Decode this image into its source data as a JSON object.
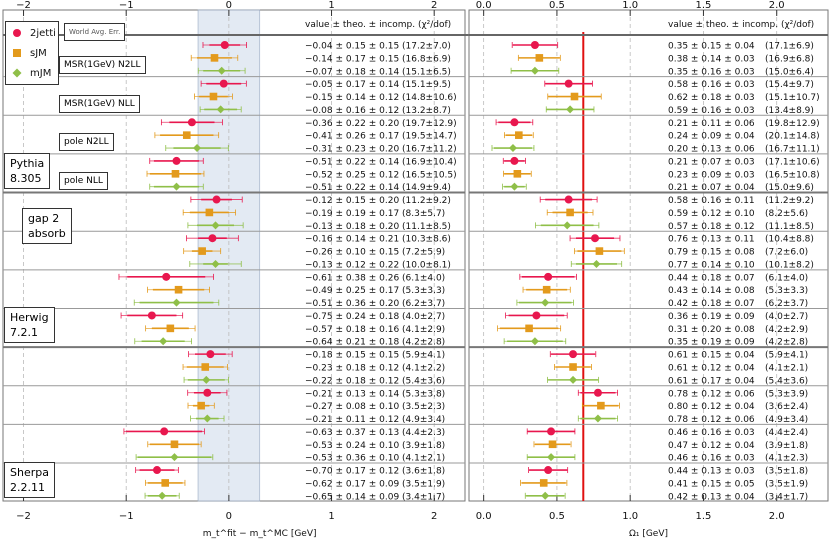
{
  "chart_data": [
    {
      "type": "scatter",
      "panel": "left",
      "xlabel": "m_t^fit − m_t^MC [GeV]",
      "xlim": [
        -2.2,
        2.3
      ],
      "xticks": [
        -2,
        -1,
        0,
        1,
        2
      ],
      "band": [
        -0.3,
        0.3
      ],
      "band_label": "World Avg. Err.",
      "value_header": "value ± theo. ± incomp. (χ²/dof)",
      "series": [
        {
          "name": "2jetti",
          "color": "#e8174e",
          "marker": "circle"
        },
        {
          "name": "sJM",
          "color": "#e39a1c",
          "marker": "square"
        },
        {
          "name": "mJM",
          "color": "#8fbf48",
          "marker": "diamond"
        }
      ],
      "points": [
        {
          "series": "2jetti",
          "value": -0.04,
          "theo": 0.15,
          "incomp": 0.15,
          "text": "−0.04 ± 0.15 ± 0.15",
          "chi2": "(17.2±7.0)"
        },
        {
          "series": "sJM",
          "value": -0.14,
          "theo": 0.17,
          "incomp": 0.15,
          "text": "−0.14 ± 0.17 ± 0.15",
          "chi2": "(16.8±6.9)"
        },
        {
          "series": "mJM",
          "value": -0.07,
          "theo": 0.18,
          "incomp": 0.14,
          "text": "−0.07 ± 0.18 ± 0.14",
          "chi2": "(15.1±6.5)"
        },
        {
          "series": "2jetti",
          "value": -0.05,
          "theo": 0.17,
          "incomp": 0.14,
          "text": "−0.05 ± 0.17 ± 0.14",
          "chi2": "(15.1±9.5)"
        },
        {
          "series": "sJM",
          "value": -0.15,
          "theo": 0.14,
          "incomp": 0.12,
          "text": "−0.15 ± 0.14 ± 0.12",
          "chi2": "(14.8±10.6)"
        },
        {
          "series": "mJM",
          "value": -0.08,
          "theo": 0.16,
          "incomp": 0.12,
          "text": "−0.08 ± 0.16 ± 0.12",
          "chi2": "(13.2±8.7)"
        },
        {
          "series": "2jetti",
          "value": -0.36,
          "theo": 0.22,
          "incomp": 0.2,
          "text": "−0.36 ± 0.22 ± 0.20",
          "chi2": "(19.7±12.9)"
        },
        {
          "series": "sJM",
          "value": -0.41,
          "theo": 0.26,
          "incomp": 0.17,
          "text": "−0.41 ± 0.26 ± 0.17",
          "chi2": "(19.5±14.7)"
        },
        {
          "series": "mJM",
          "value": -0.31,
          "theo": 0.23,
          "incomp": 0.2,
          "text": "−0.31 ± 0.23 ± 0.20",
          "chi2": "(16.7±11.2)"
        },
        {
          "series": "2jetti",
          "value": -0.51,
          "theo": 0.22,
          "incomp": 0.14,
          "text": "−0.51 ± 0.22 ± 0.14",
          "chi2": "(16.9±10.4)"
        },
        {
          "series": "sJM",
          "value": -0.52,
          "theo": 0.25,
          "incomp": 0.12,
          "text": "−0.52 ± 0.25 ± 0.12",
          "chi2": "(16.5±10.5)"
        },
        {
          "series": "mJM",
          "value": -0.51,
          "theo": 0.22,
          "incomp": 0.14,
          "text": "−0.51 ± 0.22 ± 0.14",
          "chi2": "(14.9±9.4)"
        },
        {
          "series": "2jetti",
          "value": -0.12,
          "theo": 0.15,
          "incomp": 0.2,
          "text": "−0.12 ± 0.15 ± 0.20",
          "chi2": "(11.2±9.2)"
        },
        {
          "series": "sJM",
          "value": -0.19,
          "theo": 0.19,
          "incomp": 0.17,
          "text": "−0.19 ± 0.19 ± 0.17",
          "chi2": "(8.3±5.7)"
        },
        {
          "series": "mJM",
          "value": -0.13,
          "theo": 0.18,
          "incomp": 0.2,
          "text": "−0.13 ± 0.18 ± 0.20",
          "chi2": "(11.1±8.5)"
        },
        {
          "series": "2jetti",
          "value": -0.16,
          "theo": 0.14,
          "incomp": 0.21,
          "text": "−0.16 ± 0.14 ± 0.21",
          "chi2": "(10.3±8.6)"
        },
        {
          "series": "sJM",
          "value": -0.26,
          "theo": 0.1,
          "incomp": 0.15,
          "text": "−0.26 ± 0.10 ± 0.15",
          "chi2": "(7.2±5.9)"
        },
        {
          "series": "mJM",
          "value": -0.13,
          "theo": 0.12,
          "incomp": 0.22,
          "text": "−0.13 ± 0.12 ± 0.22",
          "chi2": "(10.0±8.1)"
        },
        {
          "series": "2jetti",
          "value": -0.61,
          "theo": 0.38,
          "incomp": 0.26,
          "text": "−0.61 ± 0.38 ± 0.26",
          "chi2": "(6.1±4.0)"
        },
        {
          "series": "sJM",
          "value": -0.49,
          "theo": 0.25,
          "incomp": 0.17,
          "text": "−0.49 ± 0.25 ± 0.17",
          "chi2": "(5.3±3.3)"
        },
        {
          "series": "mJM",
          "value": -0.51,
          "theo": 0.36,
          "incomp": 0.2,
          "text": "−0.51 ± 0.36 ± 0.20",
          "chi2": "(6.2±3.7)"
        },
        {
          "series": "2jetti",
          "value": -0.75,
          "theo": 0.24,
          "incomp": 0.18,
          "text": "−0.75 ± 0.24 ± 0.18",
          "chi2": "(4.0±2.7)"
        },
        {
          "series": "sJM",
          "value": -0.57,
          "theo": 0.18,
          "incomp": 0.16,
          "text": "−0.57 ± 0.18 ± 0.16",
          "chi2": "(4.1±2.9)"
        },
        {
          "series": "mJM",
          "value": -0.64,
          "theo": 0.21,
          "incomp": 0.18,
          "text": "−0.64 ± 0.21 ± 0.18",
          "chi2": "(4.2±2.8)"
        },
        {
          "series": "2jetti",
          "value": -0.18,
          "theo": 0.15,
          "incomp": 0.15,
          "text": "−0.18 ± 0.15 ± 0.15",
          "chi2": "(5.9±4.1)"
        },
        {
          "series": "sJM",
          "value": -0.23,
          "theo": 0.18,
          "incomp": 0.12,
          "text": "−0.23 ± 0.18 ± 0.12",
          "chi2": "(4.1±2.2)"
        },
        {
          "series": "mJM",
          "value": -0.22,
          "theo": 0.18,
          "incomp": 0.12,
          "text": "−0.22 ± 0.18 ± 0.12",
          "chi2": "(5.4±3.6)"
        },
        {
          "series": "2jetti",
          "value": -0.21,
          "theo": 0.13,
          "incomp": 0.14,
          "text": "−0.21 ± 0.13 ± 0.14",
          "chi2": "(5.3±3.8)"
        },
        {
          "series": "sJM",
          "value": -0.27,
          "theo": 0.08,
          "incomp": 0.1,
          "text": "−0.27 ± 0.08 ± 0.10",
          "chi2": "(3.5±2.3)"
        },
        {
          "series": "mJM",
          "value": -0.21,
          "theo": 0.11,
          "incomp": 0.12,
          "text": "−0.21 ± 0.11 ± 0.12",
          "chi2": "(4.9±3.4)"
        },
        {
          "series": "2jetti",
          "value": -0.63,
          "theo": 0.37,
          "incomp": 0.13,
          "text": "−0.63 ± 0.37 ± 0.13",
          "chi2": "(4.4±2.3)"
        },
        {
          "series": "sJM",
          "value": -0.53,
          "theo": 0.24,
          "incomp": 0.1,
          "text": "−0.53 ± 0.24 ± 0.10",
          "chi2": "(3.9±1.8)"
        },
        {
          "series": "mJM",
          "value": -0.53,
          "theo": 0.36,
          "incomp": 0.1,
          "text": "−0.53 ± 0.36 ± 0.10",
          "chi2": "(4.1±2.1)"
        },
        {
          "series": "2jetti",
          "value": -0.7,
          "theo": 0.17,
          "incomp": 0.12,
          "text": "−0.70 ± 0.17 ± 0.12",
          "chi2": "(3.6±1.8)"
        },
        {
          "series": "sJM",
          "value": -0.62,
          "theo": 0.17,
          "incomp": 0.09,
          "text": "−0.62 ± 0.17 ± 0.09",
          "chi2": "(3.5±1.9)"
        },
        {
          "series": "mJM",
          "value": -0.65,
          "theo": 0.14,
          "incomp": 0.09,
          "text": "−0.65 ± 0.14 ± 0.09",
          "chi2": "(3.4±1.7)"
        }
      ]
    },
    {
      "type": "scatter",
      "panel": "right",
      "xlabel": "Ω₁ [GeV]",
      "xlim": [
        -0.1,
        2.35
      ],
      "xticks": [
        0.0,
        0.5,
        1.0,
        1.5,
        2.0
      ],
      "reference_line": 0.68,
      "value_header": "value ± theo. ± incomp. (χ²/dof)",
      "points": [
        {
          "series": "2jetti",
          "value": 0.35,
          "theo": 0.15,
          "incomp": 0.04,
          "text": "0.35 ± 0.15 ± 0.04",
          "chi2": "(17.1±6.9)"
        },
        {
          "series": "sJM",
          "value": 0.38,
          "theo": 0.14,
          "incomp": 0.03,
          "text": "0.38 ± 0.14 ± 0.03",
          "chi2": "(16.9±6.8)"
        },
        {
          "series": "mJM",
          "value": 0.35,
          "theo": 0.16,
          "incomp": 0.03,
          "text": "0.35 ± 0.16 ± 0.03",
          "chi2": "(15.0±6.4)"
        },
        {
          "series": "2jetti",
          "value": 0.58,
          "theo": 0.16,
          "incomp": 0.03,
          "text": "0.58 ± 0.16 ± 0.03",
          "chi2": "(15.4±9.7)"
        },
        {
          "series": "sJM",
          "value": 0.62,
          "theo": 0.18,
          "incomp": 0.03,
          "text": "0.62 ± 0.18 ± 0.03",
          "chi2": "(15.1±10.7)"
        },
        {
          "series": "mJM",
          "value": 0.59,
          "theo": 0.16,
          "incomp": 0.03,
          "text": "0.59 ± 0.16 ± 0.03",
          "chi2": "(13.4±8.9)"
        },
        {
          "series": "2jetti",
          "value": 0.21,
          "theo": 0.11,
          "incomp": 0.06,
          "text": "0.21 ± 0.11 ± 0.06",
          "chi2": "(19.8±12.9)"
        },
        {
          "series": "sJM",
          "value": 0.24,
          "theo": 0.09,
          "incomp": 0.04,
          "text": "0.24 ± 0.09 ± 0.04",
          "chi2": "(20.1±14.8)"
        },
        {
          "series": "mJM",
          "value": 0.2,
          "theo": 0.13,
          "incomp": 0.06,
          "text": "0.20 ± 0.13 ± 0.06",
          "chi2": "(16.7±11.1)"
        },
        {
          "series": "2jetti",
          "value": 0.21,
          "theo": 0.07,
          "incomp": 0.03,
          "text": "0.21 ± 0.07 ± 0.03",
          "chi2": "(17.1±10.6)"
        },
        {
          "series": "sJM",
          "value": 0.23,
          "theo": 0.09,
          "incomp": 0.03,
          "text": "0.23 ± 0.09 ± 0.03",
          "chi2": "(16.5±10.8)"
        },
        {
          "series": "mJM",
          "value": 0.21,
          "theo": 0.07,
          "incomp": 0.04,
          "text": "0.21 ± 0.07 ± 0.04",
          "chi2": "(15.0±9.6)"
        },
        {
          "series": "2jetti",
          "value": 0.58,
          "theo": 0.16,
          "incomp": 0.11,
          "text": "0.58 ± 0.16 ± 0.11",
          "chi2": "(11.2±9.2)"
        },
        {
          "series": "sJM",
          "value": 0.59,
          "theo": 0.12,
          "incomp": 0.1,
          "text": "0.59 ± 0.12 ± 0.10",
          "chi2": "(8.2±5.6)"
        },
        {
          "series": "mJM",
          "value": 0.57,
          "theo": 0.18,
          "incomp": 0.12,
          "text": "0.57 ± 0.18 ± 0.12",
          "chi2": "(11.1±8.5)"
        },
        {
          "series": "2jetti",
          "value": 0.76,
          "theo": 0.13,
          "incomp": 0.11,
          "text": "0.76 ± 0.13 ± 0.11",
          "chi2": "(10.4±8.8)"
        },
        {
          "series": "sJM",
          "value": 0.79,
          "theo": 0.15,
          "incomp": 0.08,
          "text": "0.79 ± 0.15 ± 0.08",
          "chi2": "(7.2±6.0)"
        },
        {
          "series": "mJM",
          "value": 0.77,
          "theo": 0.14,
          "incomp": 0.1,
          "text": "0.77 ± 0.14 ± 0.10",
          "chi2": "(10.1±8.2)"
        },
        {
          "series": "2jetti",
          "value": 0.44,
          "theo": 0.18,
          "incomp": 0.07,
          "text": "0.44 ± 0.18 ± 0.07",
          "chi2": "(6.1±4.0)"
        },
        {
          "series": "sJM",
          "value": 0.43,
          "theo": 0.14,
          "incomp": 0.08,
          "text": "0.43 ± 0.14 ± 0.08",
          "chi2": "(5.3±3.3)"
        },
        {
          "series": "mJM",
          "value": 0.42,
          "theo": 0.18,
          "incomp": 0.07,
          "text": "0.42 ± 0.18 ± 0.07",
          "chi2": "(6.2±3.7)"
        },
        {
          "series": "2jetti",
          "value": 0.36,
          "theo": 0.19,
          "incomp": 0.09,
          "text": "0.36 ± 0.19 ± 0.09",
          "chi2": "(4.0±2.7)"
        },
        {
          "series": "sJM",
          "value": 0.31,
          "theo": 0.2,
          "incomp": 0.08,
          "text": "0.31 ± 0.20 ± 0.08",
          "chi2": "(4.2±2.9)"
        },
        {
          "series": "mJM",
          "value": 0.35,
          "theo": 0.19,
          "incomp": 0.09,
          "text": "0.35 ± 0.19 ± 0.09",
          "chi2": "(4.2±2.8)"
        },
        {
          "series": "2jetti",
          "value": 0.61,
          "theo": 0.15,
          "incomp": 0.04,
          "text": "0.61 ± 0.15 ± 0.04",
          "chi2": "(5.9±4.1)"
        },
        {
          "series": "sJM",
          "value": 0.61,
          "theo": 0.12,
          "incomp": 0.04,
          "text": "0.61 ± 0.12 ± 0.04",
          "chi2": "(4.1±2.1)"
        },
        {
          "series": "mJM",
          "value": 0.61,
          "theo": 0.17,
          "incomp": 0.04,
          "text": "0.61 ± 0.17 ± 0.04",
          "chi2": "(5.4±3.6)"
        },
        {
          "series": "2jetti",
          "value": 0.78,
          "theo": 0.12,
          "incomp": 0.06,
          "text": "0.78 ± 0.12 ± 0.06",
          "chi2": "(5.3±3.9)"
        },
        {
          "series": "sJM",
          "value": 0.8,
          "theo": 0.12,
          "incomp": 0.04,
          "text": "0.80 ± 0.12 ± 0.04",
          "chi2": "(3.6±2.4)"
        },
        {
          "series": "mJM",
          "value": 0.78,
          "theo": 0.12,
          "incomp": 0.06,
          "text": "0.78 ± 0.12 ± 0.06",
          "chi2": "(4.9±3.4)"
        },
        {
          "series": "2jetti",
          "value": 0.46,
          "theo": 0.16,
          "incomp": 0.03,
          "text": "0.46 ± 0.16 ± 0.03",
          "chi2": "(4.4±2.4)"
        },
        {
          "series": "sJM",
          "value": 0.47,
          "theo": 0.12,
          "incomp": 0.04,
          "text": "0.47 ± 0.12 ± 0.04",
          "chi2": "(3.9±1.8)"
        },
        {
          "series": "mJM",
          "value": 0.46,
          "theo": 0.16,
          "incomp": 0.03,
          "text": "0.46 ± 0.16 ± 0.03",
          "chi2": "(4.1±2.3)"
        },
        {
          "series": "2jetti",
          "value": 0.44,
          "theo": 0.13,
          "incomp": 0.03,
          "text": "0.44 ± 0.13 ± 0.03",
          "chi2": "(3.5±1.8)"
        },
        {
          "series": "sJM",
          "value": 0.41,
          "theo": 0.15,
          "incomp": 0.05,
          "text": "0.41 ± 0.15 ± 0.05",
          "chi2": "(3.5±1.9)"
        },
        {
          "series": "mJM",
          "value": 0.42,
          "theo": 0.13,
          "incomp": 0.04,
          "text": "0.42 ± 0.13 ± 0.04",
          "chi2": "(3.4±1.7)"
        }
      ]
    }
  ],
  "labels": {
    "legend": [
      "2jetti",
      "sJM",
      "mJM"
    ],
    "world_avg": "World Avg. Err.",
    "scheme_msr_n2ll": "MSR(1GeV) N2LL",
    "scheme_msr_nll": "MSR(1GeV) NLL",
    "scheme_pole_n2ll": "pole N2LL",
    "scheme_pole_nll": "pole NLL",
    "pythia_name": "Pythia",
    "pythia_ver": "8.305",
    "gap_line1": "gap 2",
    "gap_line2": "absorb",
    "herwig_name": "Herwig",
    "herwig_ver": "7.2.1",
    "sherpa_name": "Sherpa",
    "sherpa_ver": "2.2.11"
  }
}
